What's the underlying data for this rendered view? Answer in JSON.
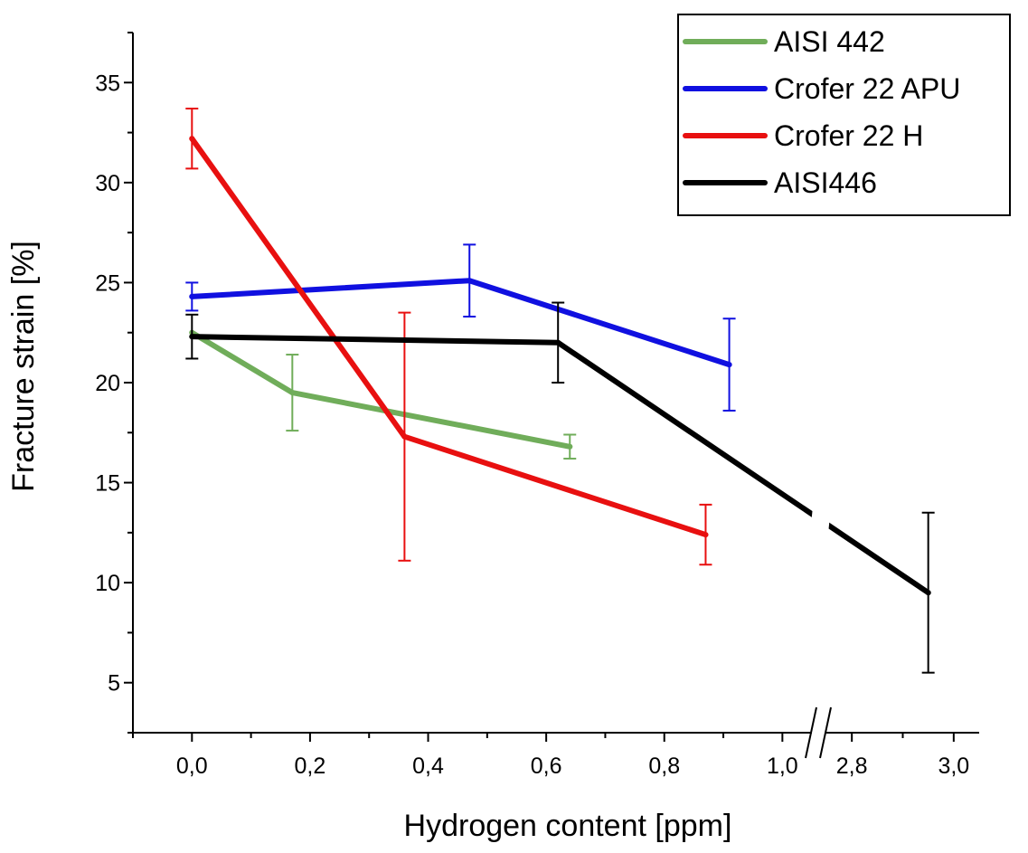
{
  "chart_data": {
    "type": "line",
    "xlabel": "Hydrogen content [ppm]",
    "ylabel": "Fracture strain [%]",
    "x_axis_break": {
      "before": 1.05,
      "after": 2.75
    },
    "xlim_segment_1": [
      -0.1,
      1.05
    ],
    "xlim_segment_2": [
      2.75,
      3.05
    ],
    "ylim": [
      2.5,
      37.5
    ],
    "x_ticks": [
      {
        "value": 0.0,
        "label": "0,0"
      },
      {
        "value": 0.2,
        "label": "0,2"
      },
      {
        "value": 0.4,
        "label": "0,4"
      },
      {
        "value": 0.6,
        "label": "0,6"
      },
      {
        "value": 0.8,
        "label": "0,8"
      },
      {
        "value": 1.0,
        "label": "1,0"
      },
      {
        "value": 2.8,
        "label": "2,8"
      },
      {
        "value": 3.0,
        "label": "3,0"
      }
    ],
    "y_ticks": [
      {
        "value": 5,
        "label": "5"
      },
      {
        "value": 10,
        "label": "10"
      },
      {
        "value": 15,
        "label": "15"
      },
      {
        "value": 20,
        "label": "20"
      },
      {
        "value": 25,
        "label": "25"
      },
      {
        "value": 30,
        "label": "30"
      },
      {
        "value": 35,
        "label": "35"
      }
    ],
    "legend_position": "top-right",
    "grid": false,
    "series": [
      {
        "name": "AISI 442",
        "color": "#70ad5a",
        "points": [
          {
            "x": 0.0,
            "y": 22.5,
            "err": 0.0
          },
          {
            "x": 0.17,
            "y": 19.5,
            "err": 1.9
          },
          {
            "x": 0.64,
            "y": 16.8,
            "err": 0.6
          }
        ]
      },
      {
        "name": "Crofer 22 APU",
        "color": "#1010e0",
        "points": [
          {
            "x": 0.0,
            "y": 24.3,
            "err": 0.7
          },
          {
            "x": 0.47,
            "y": 25.1,
            "err": 1.8
          },
          {
            "x": 0.91,
            "y": 20.9,
            "err": 2.3
          }
        ]
      },
      {
        "name": "Crofer 22 H",
        "color": "#e81010",
        "points": [
          {
            "x": 0.0,
            "y": 32.2,
            "err": 1.5
          },
          {
            "x": 0.36,
            "y": 17.3,
            "err": 6.2
          },
          {
            "x": 0.87,
            "y": 12.4,
            "err": 1.5
          }
        ]
      },
      {
        "name": "AISI446",
        "color": "#000000",
        "points": [
          {
            "x": 0.0,
            "y": 22.3,
            "err": 1.1
          },
          {
            "x": 0.62,
            "y": 22.0,
            "err": 2.0
          },
          {
            "x": 2.95,
            "y": 9.5,
            "err": 4.0
          }
        ]
      }
    ]
  }
}
